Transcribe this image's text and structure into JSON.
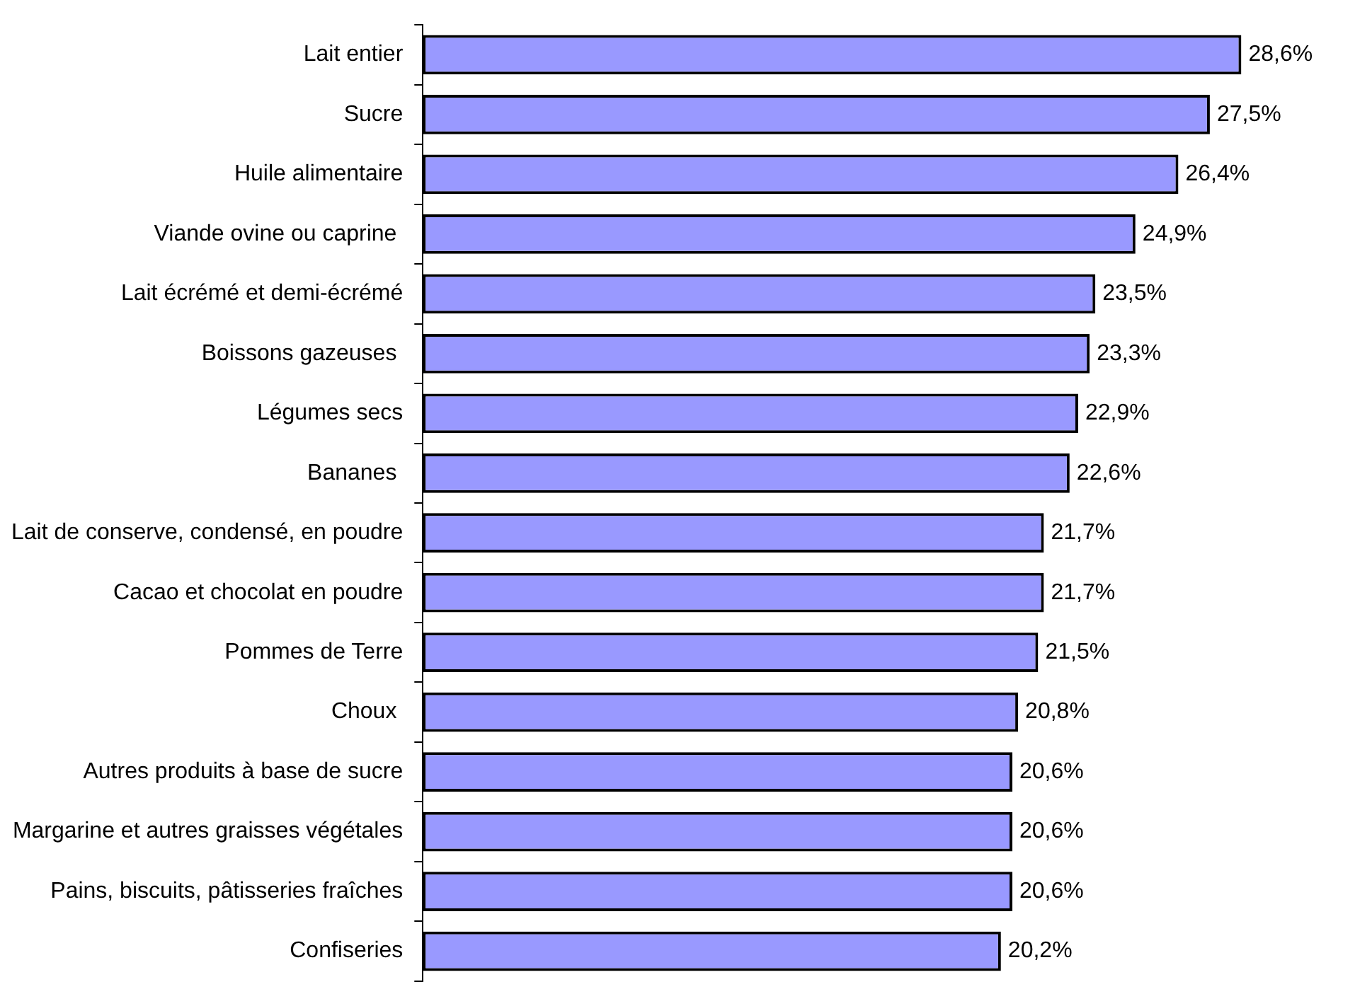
{
  "chart_data": {
    "type": "bar",
    "orientation": "horizontal",
    "categories": [
      "Lait entier",
      "Sucre",
      "Huile alimentaire",
      "Viande ovine ou caprine ",
      "Lait écrémé et demi-écrémé",
      "Boissons gazeuses ",
      "Légumes secs",
      "Bananes ",
      "Lait de conserve, condensé, en poudre",
      "Cacao et chocolat en poudre",
      "Pommes de Terre",
      "Choux ",
      "Autres produits à base de sucre",
      "Margarine et autres graisses végétales",
      "Pains, biscuits, pâtisseries fraîches",
      "Confiseries"
    ],
    "values": [
      28.6,
      27.5,
      26.4,
      24.9,
      23.5,
      23.3,
      22.9,
      22.6,
      21.7,
      21.7,
      21.5,
      20.8,
      20.6,
      20.6,
      20.6,
      20.2
    ],
    "value_labels": [
      "28,6%",
      "27,5%",
      "26,4%",
      "24,9%",
      "23,5%",
      "23,3%",
      "22,9%",
      "22,6%",
      "21,7%",
      "21,7%",
      "21,5%",
      "20,8%",
      "20,6%",
      "20,6%",
      "20,6%",
      "20,2%"
    ],
    "color": "#9999ff",
    "tick_labels": "y",
    "legend": false
  }
}
